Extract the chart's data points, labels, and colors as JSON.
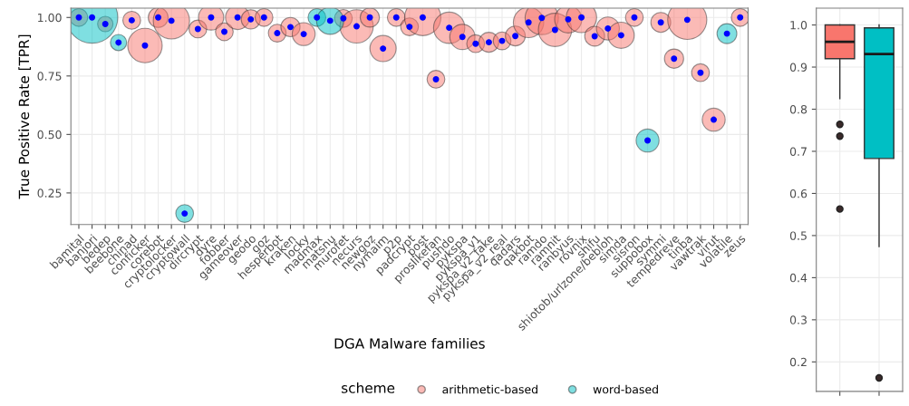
{
  "chart_data": [
    {
      "type": "bubble",
      "xlabel": "DGA Malware families",
      "ylabel": "True Positive Rate [TPR]",
      "legend_title": "scheme",
      "legend": "bottom",
      "grid": true,
      "categories": [
        "bamital",
        "banjori",
        "bedep",
        "beebone",
        "chinad",
        "conficker",
        "corebot",
        "cryptolocker",
        "cryptowall",
        "dircrypt",
        "dyre",
        "fobber",
        "gameover",
        "geodo",
        "goz",
        "hesperbot",
        "kraken",
        "locky",
        "madmax",
        "matsnu",
        "murofet",
        "necurs",
        "newgoz",
        "nymaim",
        "p2p",
        "padcrypt",
        "post",
        "proslikefan",
        "pushdo",
        "pykspa",
        "pykspa_v1",
        "pykspa_v2_fake",
        "pykspa_v2_real",
        "qadars",
        "qakbot",
        "ramdo",
        "ramnit",
        "ranbyus",
        "rovnix",
        "shifu",
        "shiotob/urlzone/bebloh",
        "simda",
        "sisron",
        "suppobox",
        "symmi",
        "tempedreve",
        "tinba",
        "vawtrak",
        "virut",
        "volatile",
        "zeus"
      ],
      "ylim": [
        0.115,
        1.04
      ],
      "yticks": [
        {
          "value": 0.25,
          "label": "0.25"
        },
        {
          "value": 0.5,
          "label": "0.50"
        },
        {
          "value": 0.75,
          "label": "0.75"
        },
        {
          "value": 1.0,
          "label": "1.00"
        }
      ],
      "series": [
        {
          "name": "arithmetic-based",
          "color": "#f8766d",
          "values": [
            1.0,
            null,
            0.972,
            null,
            0.988,
            0.88,
            1.0,
            0.986,
            null,
            0.951,
            1.0,
            0.939,
            1.0,
            0.992,
            1.0,
            0.933,
            0.959,
            0.929,
            null,
            null,
            0.996,
            0.962,
            1.0,
            0.867,
            1.0,
            0.96,
            1.0,
            0.736,
            0.956,
            0.917,
            0.888,
            0.894,
            0.9,
            0.921,
            0.979,
            0.998,
            0.947,
            0.992,
            1.0,
            0.92,
            0.953,
            0.924,
            1.0,
            null,
            0.979,
            0.824,
            0.99,
            0.764,
            0.563,
            null,
            1.0
          ],
          "sizes": [
            0.12,
            null,
            0.09,
            null,
            0.12,
            0.45,
            0.15,
            0.5,
            null,
            0.12,
            0.24,
            0.12,
            0.22,
            0.14,
            0.12,
            0.12,
            0.14,
            0.2,
            null,
            null,
            0.12,
            0.42,
            0.14,
            0.26,
            0.12,
            0.12,
            0.5,
            0.12,
            0.37,
            0.24,
            0.12,
            0.15,
            0.12,
            0.15,
            0.35,
            0.42,
            0.42,
            0.28,
            0.35,
            0.15,
            0.2,
            0.26,
            0.12,
            null,
            0.15,
            0.14,
            0.58,
            0.12,
            0.2,
            null,
            0.12
          ]
        },
        {
          "name": "word-based",
          "color": "#00bfc4",
          "values": [
            null,
            1.0,
            null,
            0.893,
            null,
            null,
            null,
            null,
            0.162,
            null,
            null,
            null,
            null,
            null,
            null,
            null,
            null,
            null,
            1.0,
            0.986,
            null,
            null,
            null,
            null,
            null,
            null,
            null,
            null,
            null,
            null,
            null,
            null,
            null,
            null,
            null,
            null,
            null,
            null,
            null,
            null,
            null,
            null,
            null,
            0.474,
            null,
            null,
            null,
            null,
            null,
            0.931,
            null
          ],
          "sizes": [
            null,
            1,
            null,
            0.1,
            null,
            null,
            null,
            null,
            0.12,
            null,
            null,
            null,
            null,
            null,
            null,
            null,
            null,
            null,
            0.12,
            0.28,
            null,
            null,
            null,
            null,
            null,
            null,
            null,
            null,
            null,
            null,
            null,
            null,
            null,
            null,
            null,
            null,
            null,
            null,
            null,
            null,
            null,
            null,
            null,
            0.2,
            null,
            null,
            null,
            null,
            null,
            0.15,
            null
          ]
        },
        {
          "type": "scatter",
          "color": "#0000ff",
          "values": [
            1.0,
            1.0,
            0.972,
            0.893,
            0.988,
            0.88,
            1.0,
            0.986,
            0.162,
            0.951,
            1.0,
            0.939,
            1.0,
            0.992,
            1.0,
            0.933,
            0.959,
            0.929,
            1.0,
            0.986,
            0.996,
            0.962,
            1.0,
            0.867,
            1.0,
            0.96,
            1.0,
            0.736,
            0.956,
            0.917,
            0.888,
            0.894,
            0.9,
            0.921,
            0.979,
            0.998,
            0.947,
            0.992,
            1.0,
            0.92,
            0.953,
            0.924,
            1.0,
            0.474,
            0.979,
            0.824,
            0.99,
            0.764,
            0.563,
            0.931,
            1.0
          ]
        }
      ]
    },
    {
      "type": "box",
      "categories": [
        null,
        null
      ],
      "grid": true,
      "tick_labels": "y",
      "colors": [
        "#f8766d",
        "#00bfc4"
      ],
      "ylim": [
        0.13,
        1.04
      ],
      "yticks": [
        0.2,
        0.3,
        0.4,
        0.5,
        0.6,
        0.7,
        0.8,
        0.9,
        {
          "value": 1.0,
          "label": "1.0"
        }
      ],
      "boxes": [
        {
          "low": 0.825,
          "q1": 0.92,
          "median": 0.96,
          "q3": 1.0,
          "high": 1.0,
          "outliers": [
            0.764,
            0.736,
            0.563
          ]
        },
        {
          "low": 0.474,
          "q1": 0.683,
          "median": 0.931,
          "q3": 0.993,
          "high": 1.0,
          "outliers": [
            0.162
          ]
        }
      ]
    }
  ]
}
